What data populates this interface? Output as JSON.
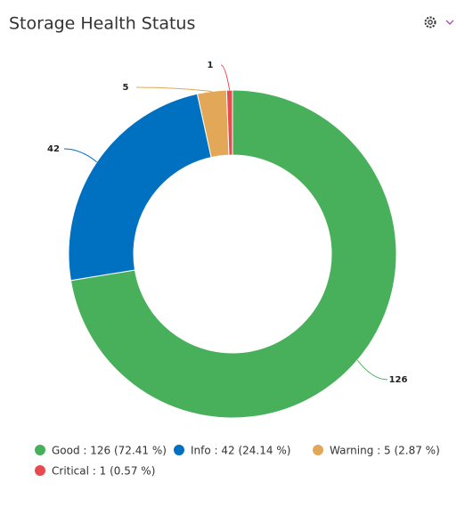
{
  "chart_data": {
    "type": "donut",
    "title": "Storage Health Status",
    "categories": [
      "Good",
      "Info",
      "Warning",
      "Critical"
    ],
    "values": [
      126,
      42,
      5,
      1
    ],
    "colors": [
      "#48b05a",
      "#0070c0",
      "#e3a857",
      "#e84b4f"
    ],
    "legend_labels": [
      "Good : 126 (72.41 %)",
      "Info : 42 (24.14 %)",
      "Warning : 5 (2.87 %)",
      "Critical : 1 (0.57 %)"
    ]
  }
}
